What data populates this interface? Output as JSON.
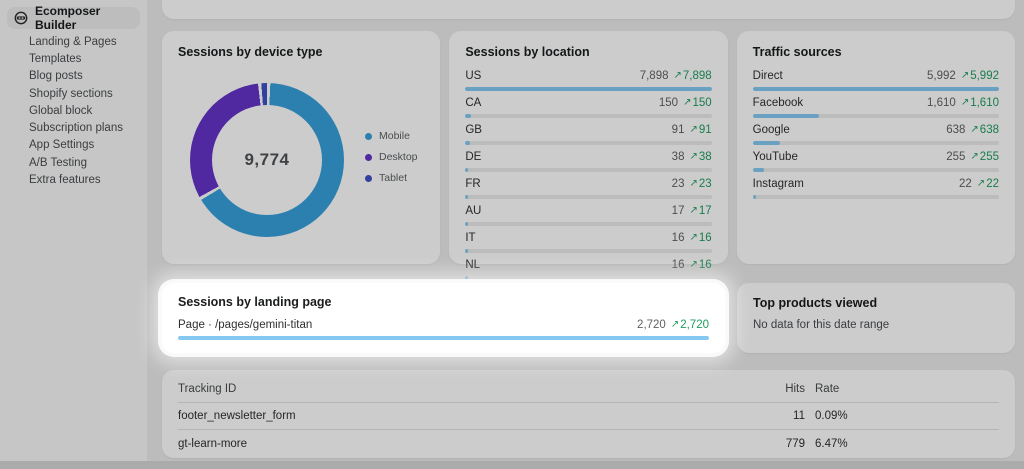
{
  "colors": {
    "green": "#1f9d5f",
    "bar_fill": "#85c8f2",
    "donut_mobile": "#37a0dc",
    "donut_desktop": "#6432c8",
    "donut_tablet": "#4150c8"
  },
  "sidebar": {
    "app_name": "Ecomposer Builder",
    "items": [
      {
        "label": "Landing & Pages"
      },
      {
        "label": "Templates"
      },
      {
        "label": "Blog posts"
      },
      {
        "label": "Shopify sections"
      },
      {
        "label": "Global block"
      },
      {
        "label": "Subscription plans"
      },
      {
        "label": "App Settings"
      },
      {
        "label": "A/B Testing"
      },
      {
        "label": "Extra features"
      }
    ]
  },
  "cards": {
    "device": {
      "title": "Sessions by device type",
      "total": "9,774"
    },
    "location": {
      "title": "Sessions by location",
      "rows": [
        {
          "label": "US",
          "value": "7,898",
          "delta": "7,898",
          "bar_pct": 100
        },
        {
          "label": "CA",
          "value": "150",
          "delta": "150",
          "bar_pct": 2.4
        },
        {
          "label": "GB",
          "value": "91",
          "delta": "91",
          "bar_pct": 1.8
        },
        {
          "label": "DE",
          "value": "38",
          "delta": "38",
          "bar_pct": 1.2
        },
        {
          "label": "FR",
          "value": "23",
          "delta": "23",
          "bar_pct": 1.2
        },
        {
          "label": "AU",
          "value": "17",
          "delta": "17",
          "bar_pct": 1.2
        },
        {
          "label": "IT",
          "value": "16",
          "delta": "16",
          "bar_pct": 1.2
        },
        {
          "label": "NL",
          "value": "16",
          "delta": "16",
          "bar_pct": 1.2
        }
      ]
    },
    "traffic": {
      "title": "Traffic sources",
      "rows": [
        {
          "label": "Direct",
          "value": "5,992",
          "delta": "5,992",
          "bar_pct": 100
        },
        {
          "label": "Facebook",
          "value": "1,610",
          "delta": "1,610",
          "bar_pct": 27
        },
        {
          "label": "Google",
          "value": "638",
          "delta": "638",
          "bar_pct": 11
        },
        {
          "label": "YouTube",
          "value": "255",
          "delta": "255",
          "bar_pct": 4.5
        },
        {
          "label": "Instagram",
          "value": "22",
          "delta": "22",
          "bar_pct": 1.2
        }
      ]
    },
    "landing": {
      "title": "Sessions by landing page",
      "rows": [
        {
          "label": "Page · /pages/gemini-titan",
          "value": "2,720",
          "delta": "2,720",
          "bar_pct": 100
        }
      ]
    },
    "top_products": {
      "title": "Top products viewed",
      "empty_text": "No data for this date range"
    },
    "tracking": {
      "headers": {
        "id": "Tracking ID",
        "hits": "Hits",
        "rate": "Rate"
      },
      "rows": [
        {
          "id": "footer_newsletter_form",
          "hits": "11",
          "rate": "0.09%"
        },
        {
          "id": "gt-learn-more",
          "hits": "779",
          "rate": "6.47%"
        }
      ]
    }
  },
  "chart_data": [
    {
      "type": "pie",
      "title": "Sessions by device type",
      "total_label": "9,774",
      "legend_position": "right",
      "segments": [
        {
          "label": "Mobile",
          "share_pct": 66.5,
          "color": "#37a0dc"
        },
        {
          "label": "Desktop",
          "share_pct": 31.5,
          "color": "#6432c8"
        },
        {
          "label": "Tablet",
          "share_pct": 1.2,
          "color": "#4150c8"
        }
      ]
    },
    {
      "type": "bar",
      "title": "Sessions by location",
      "categories": [
        "US",
        "CA",
        "GB",
        "DE",
        "FR",
        "AU",
        "IT",
        "NL"
      ],
      "values": [
        7898,
        150,
        91,
        38,
        23,
        17,
        16,
        16
      ]
    },
    {
      "type": "bar",
      "title": "Traffic sources",
      "categories": [
        "Direct",
        "Facebook",
        "Google",
        "YouTube",
        "Instagram"
      ],
      "values": [
        5992,
        1610,
        638,
        255,
        22
      ]
    },
    {
      "type": "bar",
      "title": "Sessions by landing page",
      "categories": [
        "Page · /pages/gemini-titan"
      ],
      "values": [
        2720
      ]
    },
    {
      "type": "table",
      "title": "Tracking",
      "columns": [
        "Tracking ID",
        "Hits",
        "Rate"
      ],
      "rows": [
        [
          "footer_newsletter_form",
          11,
          "0.09%"
        ],
        [
          "gt-learn-more",
          779,
          "6.47%"
        ]
      ]
    }
  ]
}
